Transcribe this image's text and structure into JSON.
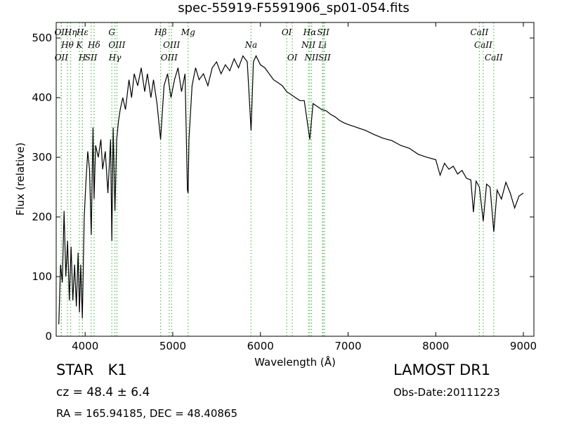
{
  "chart_data": {
    "type": "line",
    "title": "spec-55919-F5591906_sp01-054.fits",
    "x_label": "Wavelength (Å)",
    "y_label": "Flux (relative)",
    "xlim": [
      3670,
      9120
    ],
    "ylim": [
      0,
      526
    ],
    "xticks": [
      4000,
      5000,
      6000,
      7000,
      8000,
      9000
    ],
    "yticks": [
      0,
      100,
      200,
      300,
      400,
      500
    ],
    "color": "#000000",
    "line_color": "#55bb55",
    "x": [
      3700,
      3720,
      3740,
      3760,
      3780,
      3800,
      3820,
      3840,
      3860,
      3880,
      3900,
      3920,
      3935,
      3950,
      3968,
      3990,
      4010,
      4030,
      4050,
      4070,
      4090,
      4102,
      4120,
      4150,
      4180,
      4200,
      4230,
      4260,
      4290,
      4305,
      4320,
      4340,
      4360,
      4380,
      4400,
      4430,
      4460,
      4500,
      4530,
      4560,
      4600,
      4640,
      4680,
      4710,
      4750,
      4780,
      4820,
      4861,
      4900,
      4940,
      4980,
      5020,
      5060,
      5100,
      5140,
      5167,
      5175,
      5185,
      5220,
      5260,
      5300,
      5350,
      5400,
      5450,
      5500,
      5550,
      5600,
      5650,
      5700,
      5750,
      5800,
      5850,
      5893,
      5920,
      5950,
      6000,
      6050,
      6100,
      6150,
      6200,
      6250,
      6300,
      6350,
      6400,
      6450,
      6500,
      6563,
      6600,
      6650,
      6700,
      6750,
      6800,
      6850,
      6900,
      6950,
      7000,
      7100,
      7200,
      7300,
      7400,
      7500,
      7600,
      7700,
      7800,
      7900,
      8000,
      8050,
      8100,
      8150,
      8200,
      8250,
      8300,
      8350,
      8400,
      8430,
      8460,
      8498,
      8542,
      8580,
      8620,
      8662,
      8700,
      8750,
      8800,
      8850,
      8900,
      8950,
      9000
    ],
    "values": [
      20,
      120,
      90,
      210,
      100,
      160,
      60,
      150,
      60,
      120,
      50,
      140,
      40,
      120,
      30,
      200,
      260,
      310,
      280,
      170,
      350,
      230,
      320,
      300,
      330,
      280,
      310,
      240,
      330,
      160,
      350,
      210,
      330,
      360,
      380,
      400,
      380,
      430,
      400,
      440,
      420,
      450,
      410,
      440,
      400,
      430,
      390,
      330,
      420,
      440,
      400,
      430,
      450,
      410,
      440,
      245,
      240,
      330,
      420,
      450,
      430,
      440,
      420,
      450,
      460,
      440,
      455,
      445,
      465,
      450,
      470,
      460,
      345,
      460,
      470,
      455,
      450,
      440,
      430,
      425,
      420,
      410,
      405,
      400,
      395,
      395,
      330,
      390,
      385,
      380,
      378,
      372,
      368,
      362,
      358,
      355,
      350,
      345,
      338,
      332,
      328,
      320,
      315,
      305,
      300,
      296,
      270,
      290,
      280,
      285,
      272,
      278,
      265,
      262,
      208,
      260,
      250,
      193,
      255,
      250,
      175,
      245,
      230,
      258,
      240,
      215,
      235,
      240
    ],
    "lines": [
      {
        "label": "OII",
        "wavelength": 3727
      },
      {
        "label": "Hθ",
        "wavelength": 3798
      },
      {
        "label": "OII",
        "wavelength": 3729
      },
      {
        "label": "Hη",
        "wavelength": 3835
      },
      {
        "label": "K",
        "wavelength": 3934
      },
      {
        "label": "H",
        "wavelength": 3968
      },
      {
        "label": "Hε",
        "wavelength": 3970
      },
      {
        "label": "Hδ",
        "wavelength": 4102
      },
      {
        "label": "SII",
        "wavelength": 4068
      },
      {
        "label": "G",
        "wavelength": 4305
      },
      {
        "label": "OIII",
        "wavelength": 4363
      },
      {
        "label": "Hγ",
        "wavelength": 4340
      },
      {
        "label": "Hβ",
        "wavelength": 4861
      },
      {
        "label": "OIII",
        "wavelength": 4986
      },
      {
        "label": "OIII",
        "wavelength": 4959
      },
      {
        "label": "Mg",
        "wavelength": 5175
      },
      {
        "label": "Na",
        "wavelength": 5893
      },
      {
        "label": "OI",
        "wavelength": 6364
      },
      {
        "label": "OI",
        "wavelength": 6300
      },
      {
        "label": "NII",
        "wavelength": 6548
      },
      {
        "label": "NII",
        "wavelength": 6583
      },
      {
        "label": "Hα",
        "wavelength": 6563
      },
      {
        "label": "Li",
        "wavelength": 6708
      },
      {
        "label": "SII",
        "wavelength": 6731
      },
      {
        "label": "SII",
        "wavelength": 6716
      },
      {
        "label": "CaII",
        "wavelength": 8542
      },
      {
        "label": "CaII",
        "wavelength": 8662
      },
      {
        "label": "CaII",
        "wavelength": 8498
      }
    ],
    "info_left": [
      "STAR   K1",
      "cz = 48.4 ± 6.4",
      "RA = 165.94185, DEC = 48.40865"
    ],
    "info_right": [
      "LAMOST DR1",
      "Obs-Date:20111223"
    ]
  }
}
